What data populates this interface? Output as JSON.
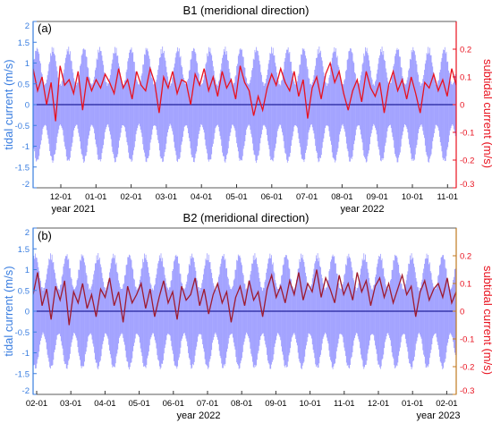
{
  "chart_data": [
    {
      "type": "line",
      "panel_label": "(a)",
      "title": "B1 (meridional direction)",
      "ylabel_left": "tidal current (m/s)",
      "ylabel_right": "subtidal current (m/s)",
      "ylim_left": [
        -2,
        2
      ],
      "ylim_right": [
        -0.3,
        0.3
      ],
      "yticks_left": [
        "-2",
        "-1.5",
        "-1",
        "-0.5",
        "0",
        "0.5",
        "1",
        "1.5",
        "2"
      ],
      "yticks_right": [
        "-0.3",
        "-0.2",
        "-0.1",
        "0",
        "0.1",
        "0.2"
      ],
      "xticks": [
        "12-01",
        "01-01",
        "02-01",
        "03-01",
        "04-01",
        "05-01",
        "06-01",
        "07-01",
        "08-01",
        "09-01",
        "10-01",
        "11-01"
      ],
      "year_labels": [
        "year 2021",
        "year 2022"
      ],
      "x_range": [
        "2021-10-25",
        "2022-11-05"
      ],
      "series": [
        {
          "role": "tidal",
          "color": "#7f7fff",
          "envelope_amplitude_ms": {
            "neap": 0.5,
            "spring": 1.4
          },
          "spring_neap_cycles": 27
        },
        {
          "role": "subtidal",
          "color": "#e8121f",
          "values_ms": [
            0.13,
            0.05,
            0.1,
            0.0,
            0.08,
            -0.06,
            0.14,
            0.07,
            0.09,
            0.04,
            0.12,
            -0.02,
            0.1,
            0.05,
            0.09,
            0.06,
            0.11,
            0.08,
            0.04,
            0.13,
            0.06,
            0.09,
            0.02,
            0.12,
            0.07,
            0.05,
            0.13,
            0.08,
            -0.03,
            0.1,
            0.06,
            0.12,
            0.04,
            0.09,
            0.08,
            0.0,
            0.11,
            0.07,
            0.13,
            0.05,
            0.1,
            0.03,
            0.12,
            0.06,
            0.09,
            0.02,
            0.14,
            0.08,
            0.05,
            -0.04,
            0.03,
            -0.02,
            0.06,
            0.11,
            0.07,
            0.13,
            0.08,
            0.05,
            0.12,
            0.03,
            0.09,
            -0.05,
            0.06,
            0.1,
            0.02,
            0.11,
            0.15,
            0.08,
            0.12,
            0.04,
            -0.02,
            0.05,
            0.09,
            0.01,
            0.12,
            0.06,
            0.03,
            0.08,
            -0.03,
            0.07,
            0.12,
            0.05,
            0.09,
            0.02,
            0.1,
            0.04,
            -0.03,
            0.08,
            0.06,
            0.11,
            0.05,
            0.09,
            0.03,
            0.13,
            0.07
          ]
        }
      ]
    },
    {
      "type": "line",
      "panel_label": "(b)",
      "title": "B2 (meridional direction)",
      "ylabel_left": "tidal current (m/s)",
      "ylabel_right": "subtidal current (m/s)",
      "ylim_left": [
        -2,
        2
      ],
      "ylim_right": [
        -0.3,
        0.3
      ],
      "yticks_left": [
        "-2",
        "-1.5",
        "-1",
        "-0.5",
        "0",
        "0.5",
        "1",
        "1.5",
        "2"
      ],
      "yticks_right": [
        "-0.3",
        "-0.2",
        "-0.1",
        "0",
        "0.1",
        "0.2"
      ],
      "xticks": [
        "02-01",
        "03-01",
        "04-01",
        "05-01",
        "06-01",
        "07-01",
        "08-01",
        "09-01",
        "10-01",
        "11-01",
        "12-01",
        "01-01",
        "02-01"
      ],
      "year_labels": [
        "year 2022",
        "year 2023"
      ],
      "x_range": [
        "2022-01-25",
        "2023-02-03"
      ],
      "series": [
        {
          "role": "tidal",
          "color": "#7f7fff",
          "envelope_amplitude_ms": {
            "neap": 0.55,
            "spring": 1.4
          },
          "spring_neap_cycles": 27
        },
        {
          "role": "subtidal",
          "color": "#9e1a2e",
          "values_ms": [
            0.06,
            0.14,
            0.02,
            0.08,
            -0.03,
            0.09,
            0.04,
            0.11,
            -0.05,
            0.07,
            0.03,
            0.1,
            0.01,
            0.06,
            -0.02,
            0.08,
            0.05,
            0.12,
            0.02,
            0.07,
            -0.04,
            0.09,
            0.03,
            0.06,
            0.1,
            0.01,
            0.08,
            -0.02,
            0.05,
            0.11,
            0.03,
            0.07,
            -0.03,
            0.09,
            0.04,
            0.06,
            0.12,
            0.02,
            0.08,
            -0.01,
            0.06,
            0.1,
            0.03,
            0.07,
            -0.04,
            0.05,
            0.09,
            0.02,
            0.11,
            0.04,
            0.07,
            -0.02,
            0.08,
            0.13,
            0.05,
            0.09,
            0.03,
            0.11,
            0.06,
            0.14,
            0.04,
            0.1,
            0.07,
            0.15,
            0.05,
            0.12,
            0.08,
            0.03,
            0.13,
            0.06,
            0.1,
            0.04,
            0.14,
            0.07,
            0.11,
            0.02,
            0.09,
            0.12,
            0.05,
            0.1,
            0.03,
            0.08,
            0.13,
            0.06,
            0.09,
            -0.02,
            0.07,
            0.11,
            0.04,
            0.08,
            0.1,
            0.05,
            0.12,
            0.03,
            0.07
          ]
        }
      ]
    }
  ]
}
